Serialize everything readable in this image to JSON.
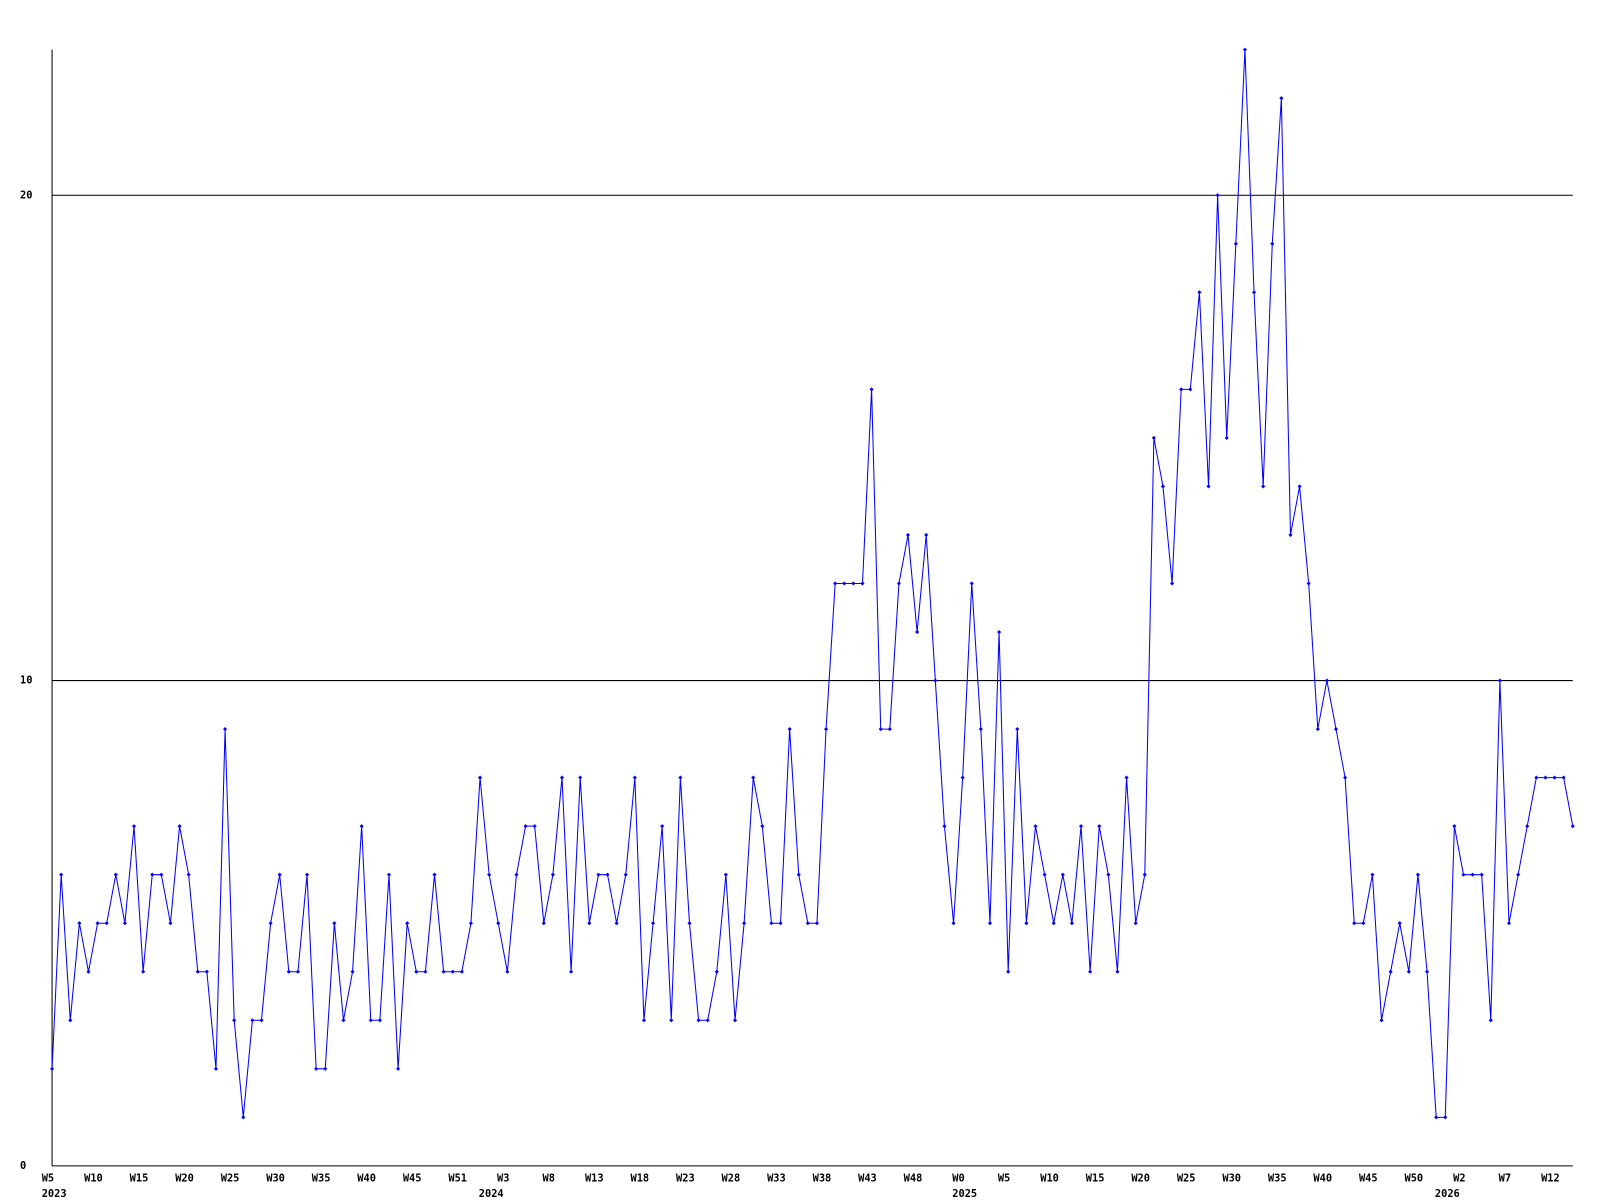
{
  "chart_data": {
    "type": "line",
    "categories": [
      "W5",
      null,
      null,
      null,
      null,
      "W10",
      null,
      null,
      null,
      null,
      "W15",
      null,
      null,
      null,
      null,
      "W20",
      null,
      null,
      null,
      null,
      "W25",
      null,
      null,
      null,
      null,
      "W30",
      null,
      null,
      null,
      null,
      "W35",
      null,
      null,
      null,
      null,
      "W40",
      null,
      null,
      null,
      null,
      "W45",
      null,
      null,
      null,
      null,
      "W51",
      null,
      null,
      null,
      null,
      "W3",
      null,
      null,
      null,
      null,
      "W8",
      null,
      null,
      null,
      null,
      "W13",
      null,
      null,
      null,
      null,
      "W18",
      null,
      null,
      null,
      null,
      "W23",
      null,
      null,
      null,
      null,
      "W28",
      null,
      null,
      null,
      null,
      "W33",
      null,
      null,
      null,
      null,
      "W38",
      null,
      null,
      null,
      null,
      "W43",
      null,
      null,
      null,
      null,
      "W48",
      null,
      null,
      null,
      null,
      "W0",
      null,
      null,
      null,
      null,
      "W5",
      null,
      null,
      null,
      null,
      "W10",
      null,
      null,
      null,
      null,
      "W15",
      null,
      null,
      null,
      null,
      "W20",
      null,
      null,
      null,
      null,
      "W25",
      null,
      null,
      null,
      null,
      "W30",
      null,
      null,
      null,
      null,
      "W35",
      null,
      null,
      null,
      null,
      "W40",
      null,
      null,
      null,
      null,
      "W45",
      null,
      null,
      null,
      null,
      "W50",
      null,
      null,
      null,
      null,
      "W2",
      null,
      null,
      null,
      null,
      "W7",
      null,
      null,
      null,
      null,
      "W12",
      null,
      null
    ],
    "category_years": [
      "2023",
      null,
      null,
      null,
      null,
      null,
      null,
      null,
      null,
      null,
      null,
      null,
      null,
      null,
      null,
      null,
      null,
      null,
      null,
      null,
      null,
      null,
      null,
      null,
      null,
      null,
      null,
      null,
      null,
      null,
      null,
      null,
      null,
      null,
      null,
      null,
      null,
      null,
      null,
      null,
      null,
      null,
      null,
      null,
      null,
      null,
      null,
      null,
      "2024",
      null,
      null,
      null,
      null,
      null,
      null,
      null,
      null,
      null,
      null,
      null,
      null,
      null,
      null,
      null,
      null,
      null,
      null,
      null,
      null,
      null,
      null,
      null,
      null,
      null,
      null,
      null,
      null,
      null,
      null,
      null,
      null,
      null,
      null,
      null,
      null,
      null,
      null,
      null,
      null,
      null,
      null,
      null,
      null,
      null,
      null,
      null,
      null,
      null,
      null,
      null,
      "2025",
      null,
      null,
      null,
      null,
      null,
      null,
      null,
      null,
      null,
      null,
      null,
      null,
      null,
      null,
      null,
      null,
      null,
      null,
      null,
      null,
      null,
      null,
      null,
      null,
      null,
      null,
      null,
      null,
      null,
      null,
      null,
      null,
      null,
      null,
      null,
      null,
      null,
      null,
      null,
      null,
      null,
      null,
      null,
      null,
      null,
      null,
      null,
      null,
      null,
      null,
      null,
      null,
      "2026",
      null,
      null,
      null,
      null,
      null,
      null,
      null,
      null,
      null,
      null,
      null,
      null,
      null,
      null
    ],
    "series": [
      {
        "color": "#0000ff",
        "values": [
          2,
          6,
          3,
          5,
          4,
          5,
          5,
          6,
          5,
          7,
          4,
          6,
          6,
          5,
          7,
          6,
          4,
          4,
          2,
          9,
          3,
          1,
          3,
          3,
          5,
          6,
          4,
          4,
          6,
          2,
          2,
          5,
          3,
          4,
          7,
          3,
          3,
          6,
          2,
          5,
          4,
          4,
          6,
          4,
          4,
          4,
          5,
          8,
          6,
          5,
          4,
          6,
          7,
          7,
          5,
          6,
          8,
          4,
          8,
          5,
          6,
          6,
          5,
          6,
          8,
          3,
          5,
          7,
          3,
          8,
          5,
          3,
          3,
          4,
          6,
          3,
          5,
          8,
          7,
          5,
          5,
          9,
          6,
          5,
          5,
          9,
          12,
          12,
          12,
          12,
          16,
          9,
          9,
          12,
          13,
          11,
          13,
          10,
          7,
          5,
          8,
          12,
          9,
          5,
          11,
          4,
          9,
          5,
          7,
          6,
          5,
          6,
          5,
          7,
          4,
          7,
          6,
          4,
          8,
          5,
          6,
          15,
          14,
          12,
          16,
          16,
          18,
          14,
          20,
          15,
          19,
          23,
          18,
          14,
          19,
          22,
          13,
          14,
          12,
          9,
          10,
          9,
          8,
          5,
          5,
          6,
          3,
          4,
          5,
          4,
          6,
          4,
          1,
          1,
          7,
          6,
          6,
          6,
          3,
          10,
          5,
          6,
          7,
          8,
          8,
          8,
          8,
          7
        ]
      }
    ],
    "ylim": [
      0,
      23
    ],
    "yticks": [
      0,
      10,
      20
    ],
    "grid": true
  }
}
